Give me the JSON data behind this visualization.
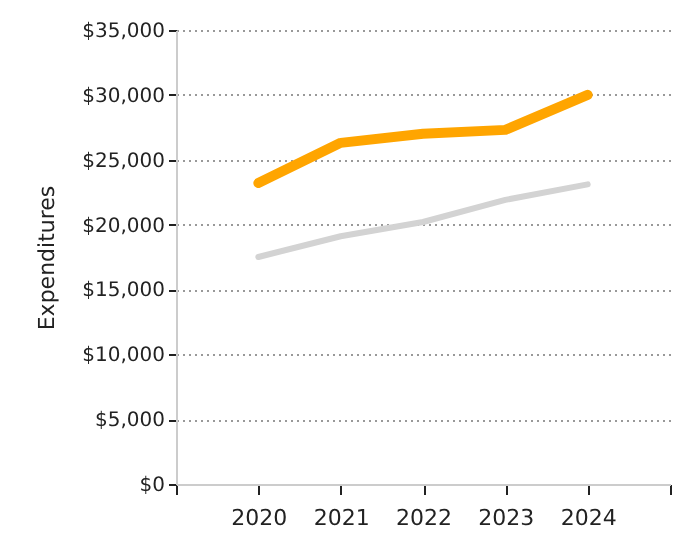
{
  "chart_data": {
    "type": "line",
    "ylabel": "Expenditures",
    "x": [
      2020,
      2021,
      2022,
      2023,
      2024
    ],
    "series": [
      {
        "color": "#d3d3d3",
        "values": [
          17500,
          19100,
          20200,
          21900,
          23100
        ]
      },
      {
        "color": "#ffa500",
        "values": [
          23200,
          26300,
          27000,
          27300,
          30000
        ]
      }
    ],
    "xlim": [
      2019,
      2025
    ],
    "xticks": [
      {
        "value": 2019,
        "label": null
      },
      2020,
      2021,
      2022,
      2023,
      2024,
      {
        "value": 2025,
        "label": null
      }
    ],
    "ylim": [
      0,
      35000
    ],
    "yticks": [
      {
        "value": 0,
        "label": "$0"
      },
      {
        "value": 5000,
        "label": "$5,000"
      },
      {
        "value": 10000,
        "label": "$10,000"
      },
      {
        "value": 15000,
        "label": "$15,000"
      },
      {
        "value": 20000,
        "label": "$20,000"
      },
      {
        "value": 25000,
        "label": "$25,000"
      },
      {
        "value": 30000,
        "label": "$30,000"
      },
      {
        "value": 35000,
        "label": "$35,000"
      }
    ],
    "grid": "y",
    "marker": "none",
    "line_style": "solid"
  }
}
